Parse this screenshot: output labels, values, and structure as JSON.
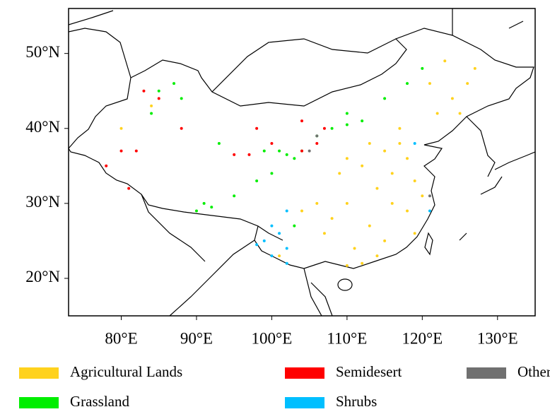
{
  "chart_data": {
    "type": "scatter",
    "xlim": [
      73,
      135
    ],
    "ylim": [
      15,
      56
    ],
    "xticks": [
      {
        "value": 80,
        "label": "80°E"
      },
      {
        "value": 90,
        "label": "90°E"
      },
      {
        "value": 100,
        "label": "100°E"
      },
      {
        "value": 110,
        "label": "110°E"
      },
      {
        "value": 120,
        "label": "120°E"
      },
      {
        "value": 130,
        "label": "130°E"
      }
    ],
    "yticks": [
      {
        "value": 20,
        "label": "20°N"
      },
      {
        "value": 30,
        "label": "30°N"
      },
      {
        "value": 40,
        "label": "40°N"
      },
      {
        "value": 50,
        "label": "50°N"
      }
    ],
    "series": [
      {
        "name": "Agricultural Lands",
        "color": "#FFD21E",
        "x": [
          112,
          115,
          116,
          114,
          117,
          118,
          110,
          106,
          104,
          108,
          113,
          115,
          111,
          118,
          120,
          116,
          112,
          119,
          122,
          124,
          126,
          127,
          121,
          125,
          123,
          113,
          109,
          110,
          117,
          114,
          119,
          107,
          110,
          101,
          80,
          84
        ],
        "y": [
          35,
          37,
          34,
          32,
          38,
          36,
          30,
          30,
          29,
          28,
          27,
          25,
          24,
          29,
          31,
          30,
          22,
          26,
          42,
          44,
          46,
          48,
          46,
          42,
          49,
          38,
          34,
          36,
          40,
          23,
          33,
          26,
          21.7,
          23,
          40,
          43
        ]
      },
      {
        "name": "Grassland",
        "color": "#00EE00",
        "x": [
          102,
          101,
          103,
          108,
          112,
          110,
          115,
          118,
          120,
          90,
          92,
          95,
          98,
          100,
          88,
          87,
          84,
          85,
          93,
          104,
          106,
          110,
          99,
          103,
          91
        ],
        "y": [
          36.5,
          37,
          36,
          40,
          41,
          42,
          44,
          46,
          48,
          29,
          29.5,
          31,
          33,
          34,
          44,
          46,
          42,
          45,
          38,
          37,
          39,
          40.5,
          37,
          27,
          30
        ]
      },
      {
        "name": "Semidesert",
        "color": "#FF0000",
        "x": [
          80,
          82,
          78,
          83,
          85,
          88,
          95,
          97,
          98,
          100,
          104,
          106,
          107,
          104,
          81
        ],
        "y": [
          37,
          37,
          35,
          45,
          44,
          40,
          36.5,
          36.5,
          40,
          38,
          37,
          38,
          40,
          41,
          32
        ]
      },
      {
        "name": "Shrubs",
        "color": "#00BFFF",
        "x": [
          99,
          100,
          101,
          102,
          98,
          100,
          102,
          121,
          119,
          102
        ],
        "y": [
          25,
          23,
          26,
          24,
          24.5,
          27,
          29,
          29,
          38,
          22
        ]
      },
      {
        "name": "Other",
        "color": "#707070",
        "x": [
          121,
          106,
          105
        ],
        "y": [
          31,
          39,
          37
        ]
      }
    ]
  }
}
